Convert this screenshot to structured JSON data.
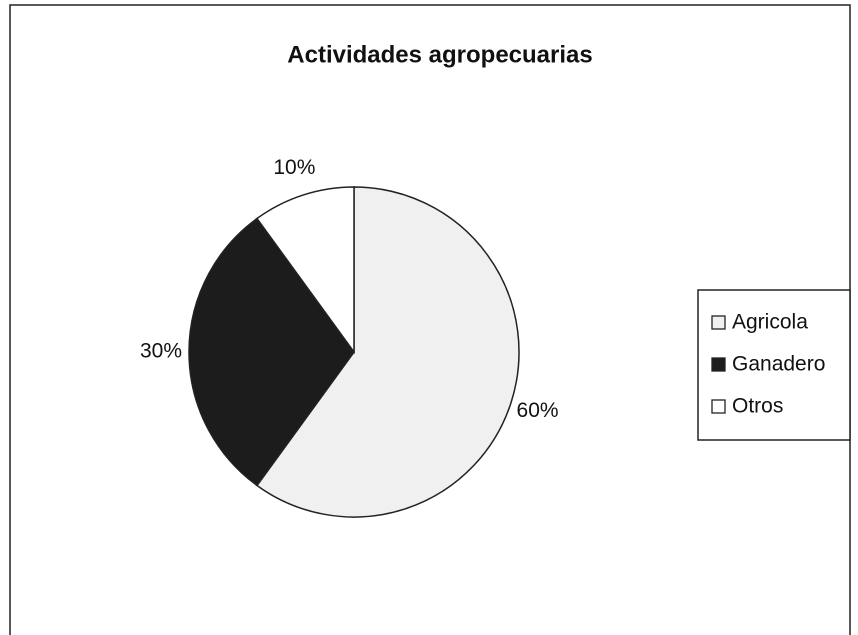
{
  "chart_data": {
    "type": "pie",
    "title": "Actividades agropecuarias",
    "categories": [
      "Agricola",
      "Ganadero",
      "Otros"
    ],
    "values": [
      60,
      30,
      10
    ],
    "value_labels": [
      "60%",
      "30%",
      "10%"
    ],
    "colors": [
      "#f0f0f0",
      "#1c1c1c",
      "#ffffff"
    ],
    "legend": "right"
  }
}
